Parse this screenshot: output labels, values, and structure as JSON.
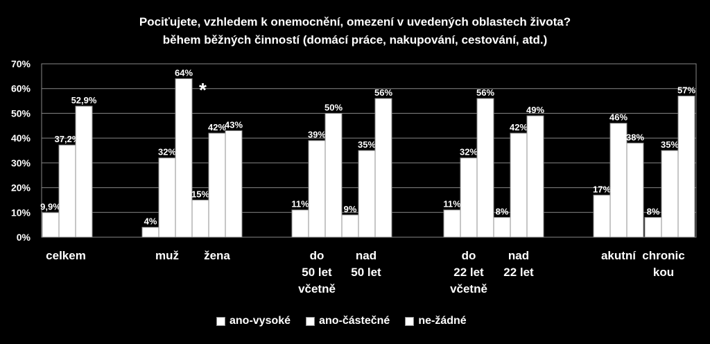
{
  "chart_data": {
    "type": "bar",
    "title": "Pociťujete, vzhledem k onemocnění,  omezení v uvedených oblastech života?",
    "subtitle": "během běžných činností (domácí práce, nakupování, cestování, atd.)",
    "ylim": [
      0,
      70
    ],
    "yticks": [
      "0%",
      "10%",
      "20%",
      "30%",
      "40%",
      "50%",
      "60%",
      "70%"
    ],
    "grid": true,
    "legend_position": "bottom",
    "annotation": "*",
    "groups": [
      {
        "category": [
          "celkem"
        ],
        "values": [
          9.9,
          37.2,
          52.9
        ],
        "labels": [
          "9,9%",
          "37,2%",
          "52,9%"
        ]
      },
      {
        "category": [
          "muž"
        ],
        "values": [
          4,
          32,
          64
        ],
        "labels": [
          "4%",
          "32%",
          "64%"
        ]
      },
      {
        "category": [
          "žena"
        ],
        "values": [
          15,
          42,
          43
        ],
        "labels": [
          "15%",
          "42%",
          "43%"
        ]
      },
      {
        "category": [
          "do",
          "50 let",
          "včetně"
        ],
        "values": [
          11,
          39,
          50
        ],
        "labels": [
          "11%",
          "39%",
          "50%"
        ]
      },
      {
        "category": [
          "nad",
          "50 let"
        ],
        "values": [
          9,
          35,
          56
        ],
        "labels": [
          "9%",
          "35%",
          "56%"
        ]
      },
      {
        "category": [
          "do",
          "22 let",
          "včetně"
        ],
        "values": [
          11,
          32,
          56
        ],
        "labels": [
          "11%",
          "32%",
          "56%"
        ]
      },
      {
        "category": [
          "nad",
          "22 let"
        ],
        "values": [
          8,
          42,
          49
        ],
        "labels": [
          "8%",
          "42%",
          "49%"
        ]
      },
      {
        "category": [
          "akutní"
        ],
        "values": [
          17,
          46,
          38
        ],
        "labels": [
          "17%",
          "46%",
          "38%"
        ]
      },
      {
        "category": [
          "chronic",
          "kou"
        ],
        "values": [
          8,
          35,
          57
        ],
        "labels": [
          "8%",
          "35%",
          "57%"
        ]
      }
    ],
    "series": [
      {
        "name": "ano-vysoké"
      },
      {
        "name": "ano-částečné"
      },
      {
        "name": "ne-žádné"
      }
    ]
  }
}
